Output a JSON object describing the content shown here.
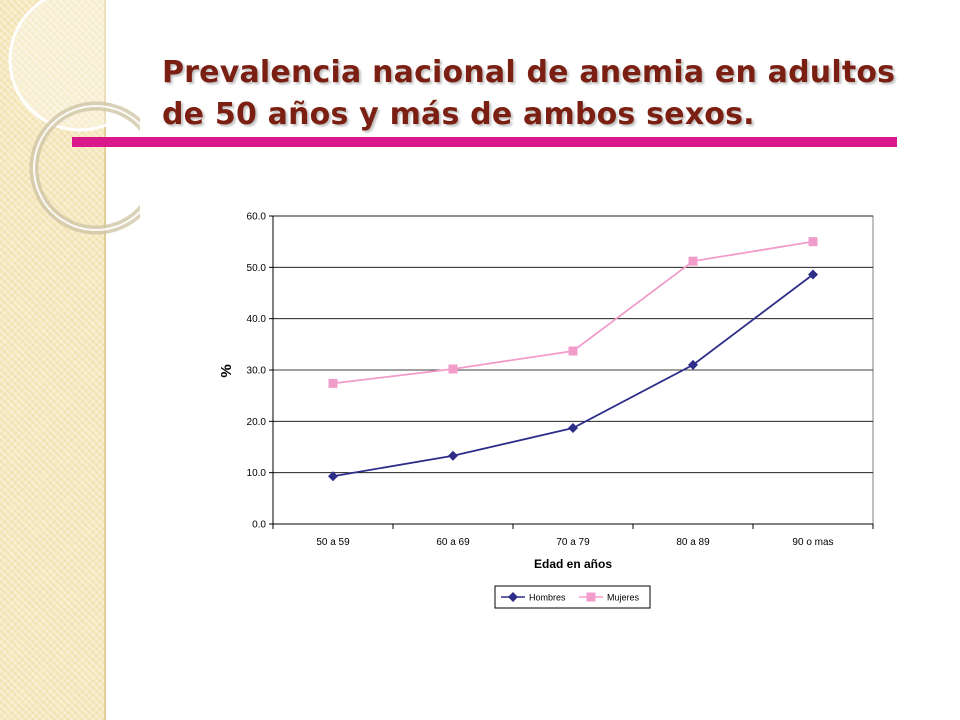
{
  "title": {
    "line1": "Prevalencia nacional de anemia en adultos",
    "line2": "de 50 años y más de ambos sexos."
  },
  "colors": {
    "title": "#7a1f12",
    "rule": "#d9188c",
    "hombres": "#2e2e8a",
    "mujeres": "#f29ccc"
  },
  "chart_data": {
    "type": "line",
    "categories": [
      "50 a 59",
      "60 a 69",
      "70 a 79",
      "80 a 89",
      "90  o mas"
    ],
    "series": [
      {
        "name": "Hombres",
        "values": [
          9.3,
          13.3,
          18.7,
          31.0,
          48.6
        ],
        "marker": "diamond"
      },
      {
        "name": "Mujeres",
        "values": [
          27.4,
          30.2,
          33.7,
          51.2,
          55.0
        ],
        "marker": "square"
      }
    ],
    "xlabel": "Edad en años",
    "ylabel": "%",
    "ylim": [
      0,
      60
    ],
    "yticks": [
      "0.0",
      "10.0",
      "20.0",
      "30.0",
      "40.0",
      "50.0",
      "60.0"
    ],
    "grid": true,
    "legend": "bottom"
  }
}
